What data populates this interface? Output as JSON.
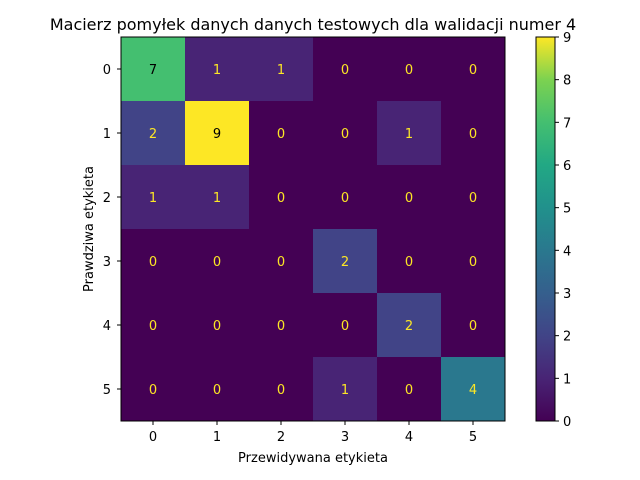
{
  "chart_data": {
    "type": "heatmap",
    "title": "Macierz pomyłek danych danych testowych dla walidacji numer 4",
    "xlabel": "Przewidywana etykieta",
    "ylabel": "Prawdziwa etykieta",
    "x_categories": [
      "0",
      "1",
      "2",
      "3",
      "4",
      "5"
    ],
    "y_categories": [
      "0",
      "1",
      "2",
      "3",
      "4",
      "5"
    ],
    "values": [
      [
        7,
        1,
        1,
        0,
        0,
        0
      ],
      [
        2,
        9,
        0,
        0,
        1,
        0
      ],
      [
        1,
        1,
        0,
        0,
        0,
        0
      ],
      [
        0,
        0,
        0,
        2,
        0,
        0
      ],
      [
        0,
        0,
        0,
        0,
        2,
        0
      ],
      [
        0,
        0,
        0,
        1,
        0,
        4
      ]
    ],
    "colorbar": {
      "range": [
        0,
        9
      ],
      "ticks": [
        "0",
        "1",
        "2",
        "3",
        "4",
        "5",
        "6",
        "7",
        "8",
        "9"
      ]
    },
    "colormap": "viridis",
    "text_colors": {
      "light_cell": "#000000",
      "dark_cell": "#fde725"
    },
    "grid": false
  }
}
